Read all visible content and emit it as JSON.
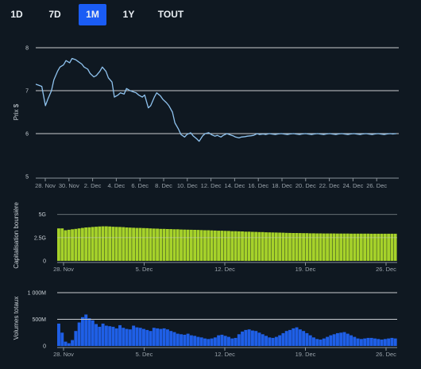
{
  "range_buttons": [
    {
      "label": "1D",
      "active": false
    },
    {
      "label": "7D",
      "active": false
    },
    {
      "label": "1M",
      "active": true
    },
    {
      "label": "1Y",
      "active": false
    },
    {
      "label": "TOUT",
      "active": false
    }
  ],
  "colors": {
    "background": "#0f1821",
    "active_button": "#1a5cf5",
    "price_line": "#8fc3ef",
    "market_cap_bars": "#a6d22a",
    "volume_bars": "#1f5fe6"
  },
  "chart_data": [
    {
      "type": "line",
      "ylabel": "Prix $",
      "ylim": [
        5,
        8
      ],
      "yticks": [
        "5",
        "6",
        "7",
        "8"
      ],
      "xticks": [
        "28. Nov",
        "30. Nov",
        "2. Dec",
        "4. Dec",
        "6. Dec",
        "8. Dec",
        "10. Dec",
        "12. Dec",
        "14. Dec",
        "16. Dec",
        "18. Dec",
        "20. Dec",
        "22. Dec",
        "24. Dec",
        "26. Dec"
      ],
      "x": [
        27.5,
        27.8,
        28.0,
        28.3,
        28.5,
        28.8,
        29.0,
        29.3,
        29.5,
        29.8,
        30.0,
        30.3,
        30.5,
        30.8,
        31.0,
        31.3,
        31.5,
        31.8,
        32.0,
        32.3,
        32.5,
        32.8,
        33.0,
        33.3,
        33.5,
        33.8,
        34.0,
        34.3,
        34.5,
        34.8,
        35.0,
        35.3,
        35.5,
        35.8,
        36.0,
        36.3,
        36.5,
        36.8,
        37.0,
        37.3,
        37.5,
        37.8,
        38.0,
        38.3,
        38.5,
        38.8,
        39.0,
        39.3,
        39.5,
        39.8,
        40.0,
        40.3,
        40.5,
        40.8,
        41.0,
        41.3,
        41.5,
        41.8,
        42.0,
        42.3,
        42.5,
        42.8,
        43.0,
        43.3,
        43.5,
        43.8,
        44.0,
        44.3,
        44.5,
        44.8,
        45.0,
        45.3,
        45.5,
        45.8,
        46.0,
        46.3,
        46.5,
        46.8,
        47.0,
        47.3,
        47.5,
        47.8,
        48.0,
        48.3,
        48.5,
        48.8,
        49.0,
        49.3,
        49.5,
        49.8,
        50.0,
        50.3,
        50.5,
        50.8,
        51.0,
        51.3,
        51.5,
        51.8,
        52.0,
        52.3,
        52.5,
        52.8,
        53.0,
        53.3,
        53.5,
        53.8,
        54.0,
        54.3,
        54.5,
        54.8,
        55.0,
        55.3,
        55.5,
        55.8,
        56.0,
        56.3,
        56.5,
        56.8,
        57.0,
        57.3
      ],
      "series": [
        {
          "values": [
            7.15,
            7.12,
            7.1,
            6.65,
            6.8,
            7.0,
            7.25,
            7.45,
            7.55,
            7.6,
            7.7,
            7.65,
            7.75,
            7.72,
            7.68,
            7.62,
            7.55,
            7.5,
            7.4,
            7.32,
            7.35,
            7.45,
            7.55,
            7.45,
            7.3,
            7.2,
            6.85,
            6.9,
            6.95,
            6.92,
            7.05,
            7.0,
            6.98,
            6.95,
            6.9,
            6.85,
            6.9,
            6.6,
            6.65,
            6.85,
            6.95,
            6.88,
            6.8,
            6.72,
            6.65,
            6.5,
            6.25,
            6.1,
            5.98,
            5.92,
            5.98,
            6.02,
            5.95,
            5.88,
            5.82,
            5.95,
            6.0,
            6.02,
            5.98,
            5.94,
            5.96,
            5.92,
            5.96,
            6.0,
            5.98,
            5.95,
            5.92,
            5.9,
            5.92,
            5.93,
            5.94,
            5.95,
            5.96,
            6.0,
            5.98,
            5.99,
            5.98,
            6.0,
            5.99,
            5.98,
            5.99,
            6.0,
            5.99,
            5.98,
            5.99,
            6.0,
            5.99,
            5.98,
            5.99,
            6.0,
            5.99,
            5.98,
            5.99,
            6.0,
            5.99,
            5.98,
            5.99,
            6.0,
            5.99,
            5.98,
            5.99,
            6.0,
            5.99,
            5.98,
            5.99,
            6.0,
            5.99,
            5.98,
            5.99,
            6.0,
            5.99,
            5.98,
            5.99,
            6.0,
            5.99,
            5.98,
            5.99,
            6.0,
            5.99,
            6.0
          ]
        }
      ]
    },
    {
      "type": "bar",
      "ylabel": "Capitalisation boursière",
      "ylim": [
        0,
        6
      ],
      "yticks": [
        "0",
        "2.5G",
        "5G"
      ],
      "xticks": [
        "28. Nov",
        "5. Dec",
        "12. Dec",
        "19. Dec",
        "26. Dec"
      ],
      "values": [
        3.5,
        3.5,
        3.3,
        3.35,
        3.4,
        3.45,
        3.5,
        3.55,
        3.6,
        3.62,
        3.65,
        3.68,
        3.7,
        3.72,
        3.72,
        3.7,
        3.68,
        3.66,
        3.65,
        3.63,
        3.6,
        3.58,
        3.57,
        3.55,
        3.55,
        3.53,
        3.52,
        3.5,
        3.48,
        3.47,
        3.45,
        3.45,
        3.43,
        3.42,
        3.4,
        3.4,
        3.38,
        3.37,
        3.36,
        3.35,
        3.34,
        3.33,
        3.32,
        3.3,
        3.3,
        3.28,
        3.27,
        3.25,
        3.25,
        3.23,
        3.22,
        3.2,
        3.2,
        3.18,
        3.17,
        3.15,
        3.15,
        3.13,
        3.12,
        3.1,
        3.1,
        3.08,
        3.07,
        3.06,
        3.05,
        3.04,
        3.03,
        3.02,
        3.01,
        3.0,
        3.0,
        2.99,
        2.98,
        2.98,
        2.97,
        2.97,
        2.96,
        2.96,
        2.95,
        2.95,
        2.95,
        2.95,
        2.94,
        2.94,
        2.94,
        2.94,
        2.93,
        2.93,
        2.93,
        2.93,
        2.93,
        2.93,
        2.92,
        2.92,
        2.92,
        2.92,
        2.92,
        2.92,
        2.92,
        2.92
      ]
    },
    {
      "type": "area",
      "ylabel": "Volumes totaux",
      "ylim": [
        0,
        1000
      ],
      "yticks": [
        "0",
        "500M",
        "1 000M"
      ],
      "xticks": [
        "28. Nov",
        "5. Dec",
        "12. Dec",
        "19. Dec",
        "26. Dec"
      ],
      "values": [
        420,
        250,
        80,
        50,
        110,
        280,
        440,
        540,
        590,
        520,
        480,
        410,
        360,
        420,
        380,
        370,
        360,
        330,
        390,
        340,
        320,
        310,
        380,
        350,
        340,
        320,
        300,
        280,
        340,
        330,
        320,
        330,
        310,
        280,
        260,
        230,
        220,
        210,
        230,
        200,
        190,
        170,
        160,
        140,
        130,
        140,
        160,
        200,
        210,
        190,
        170,
        140,
        150,
        220,
        270,
        300,
        310,
        290,
        280,
        250,
        220,
        190,
        160,
        150,
        170,
        200,
        240,
        280,
        300,
        330,
        350,
        310,
        280,
        240,
        200,
        160,
        130,
        120,
        140,
        170,
        200,
        220,
        240,
        250,
        260,
        230,
        200,
        170,
        140,
        130,
        140,
        150,
        150,
        140,
        130,
        120,
        130,
        140,
        150,
        140
      ]
    }
  ]
}
